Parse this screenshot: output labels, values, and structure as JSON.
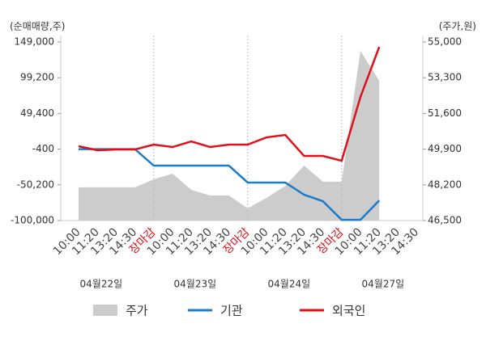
{
  "chart_data": {
    "type": "line",
    "y_label": "(순매매량,주)",
    "y2_label": "(주가,원)",
    "categories": [
      "10:00",
      "11:20",
      "13:20",
      "14:30",
      "장마감",
      "10:00",
      "11:20",
      "13:20",
      "14:30",
      "장마감",
      "10:00",
      "11:20",
      "13:20",
      "14:30",
      "장마감",
      "10:00",
      "11:20",
      "13:20",
      "14:30"
    ],
    "dates": [
      "04월22일",
      "04월23일",
      "04월24일",
      "04월27일"
    ],
    "ylim": [
      -100000,
      149000
    ],
    "yticks": [
      {
        "value": 149000,
        "label": "149,000"
      },
      {
        "value": 99200,
        "label": "99,200"
      },
      {
        "value": 49400,
        "label": "49,400"
      },
      {
        "value": -400,
        "label": "-400"
      },
      {
        "value": -50200,
        "label": "-50,200"
      },
      {
        "value": -100000,
        "label": "-100,000"
      }
    ],
    "y2lim": [
      46500,
      55000
    ],
    "y2ticks": [
      {
        "value": 55000,
        "label": "55,000"
      },
      {
        "value": 53300,
        "label": "53,300"
      },
      {
        "value": 51600,
        "label": "51,600"
      },
      {
        "value": 49900,
        "label": "49,900"
      },
      {
        "value": 48200,
        "label": "48,200"
      },
      {
        "value": 46500,
        "label": "46,500"
      }
    ],
    "series": [
      {
        "name": "주가",
        "type": "area",
        "axis": "y2",
        "color": "#cccccc",
        "values": [
          48080,
          48080,
          48080,
          48080,
          48460,
          48730,
          47960,
          47690,
          47690,
          47080,
          47580,
          48150,
          49120,
          48350,
          48350,
          54580,
          53150,
          null,
          null
        ]
      },
      {
        "name": "기관",
        "type": "line",
        "color": "#1a7bc9",
        "values": [
          -400,
          -400,
          -400,
          -400,
          -23400,
          -23400,
          -23400,
          -23400,
          -23400,
          -47000,
          -47000,
          -47000,
          -64000,
          -73000,
          -99000,
          -99000,
          -72000,
          null,
          null
        ]
      },
      {
        "name": "외국인",
        "type": "line",
        "color": "#e0101a",
        "values": [
          3650,
          -2000,
          -850,
          -850,
          5900,
          2500,
          10400,
          2500,
          5900,
          5900,
          16000,
          19400,
          -9900,
          -9900,
          -16600,
          72400,
          142200,
          null,
          null
        ]
      }
    ]
  }
}
